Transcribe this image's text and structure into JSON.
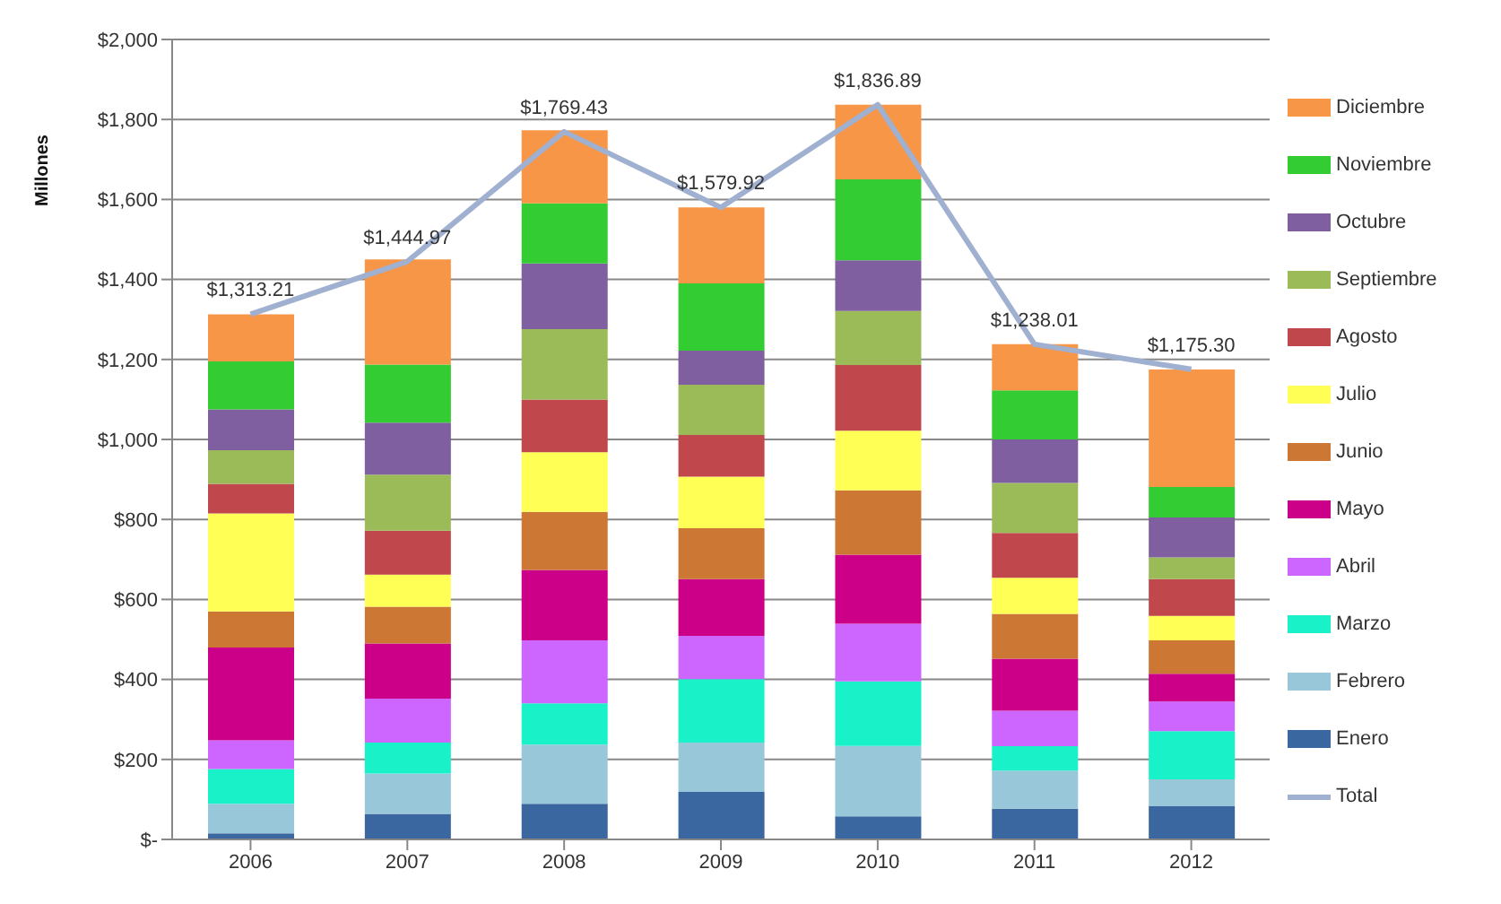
{
  "chart_data": {
    "type": "bar",
    "stacked": true,
    "ylabel": "Millones",
    "categories": [
      "2006",
      "2007",
      "2008",
      "2009",
      "2010",
      "2011",
      "2012"
    ],
    "series": [
      {
        "name": "Enero",
        "color": "#3a67a0",
        "values": [
          15,
          64,
          89,
          119,
          58,
          77,
          83
        ]
      },
      {
        "name": "Febrero",
        "color": "#99c7da",
        "values": [
          74,
          101,
          148,
          123,
          176,
          95,
          67
        ]
      },
      {
        "name": "Marzo",
        "color": "#19f2c8",
        "values": [
          87,
          77,
          103,
          159,
          161,
          61,
          121
        ]
      },
      {
        "name": "Abril",
        "color": "#cc66ff",
        "values": [
          72,
          110,
          158,
          108,
          144,
          89,
          74
        ]
      },
      {
        "name": "Mayo",
        "color": "#cc0088",
        "values": [
          232,
          138,
          176,
          142,
          173,
          130,
          69
        ]
      },
      {
        "name": "Junio",
        "color": "#cc7733",
        "values": [
          90,
          92,
          145,
          127,
          161,
          112,
          84
        ]
      },
      {
        "name": "Julio",
        "color": "#ffff55",
        "values": [
          245,
          80,
          149,
          129,
          149,
          90,
          61
        ]
      },
      {
        "name": "Agosto",
        "color": "#c0474b",
        "values": [
          74,
          110,
          132,
          104,
          164,
          112,
          92
        ]
      },
      {
        "name": "Septiembre",
        "color": "#9bbb59",
        "values": [
          84,
          140,
          176,
          126,
          135,
          125,
          54
        ]
      },
      {
        "name": "Octubre",
        "color": "#7f5fa0",
        "values": [
          102,
          130,
          164,
          85,
          127,
          109,
          100
        ]
      },
      {
        "name": "Noviembre",
        "color": "#33cc33",
        "values": [
          120,
          145,
          150,
          168,
          202,
          123,
          76
        ]
      },
      {
        "name": "Diciembre",
        "color": "#f79646",
        "values": [
          118,
          263,
          183,
          190,
          187,
          115,
          294
        ]
      },
      {
        "name": "Total",
        "type": "line",
        "color": "#a0b0d0",
        "marker": "none",
        "values": [
          1313.21,
          1444.97,
          1769.43,
          1579.92,
          1836.89,
          1238.01,
          1175.3
        ],
        "value_labels": [
          "$1,313.21",
          "$1,444.97",
          "$1,769.43",
          "$1,579.92",
          "$1,836.89",
          "$1,238.01",
          "$1,175.30"
        ]
      }
    ],
    "ylim": [
      0,
      2000
    ],
    "yticks": [
      {
        "value": 0,
        "label": "$-"
      },
      {
        "value": 200,
        "label": "$200"
      },
      {
        "value": 400,
        "label": "$400"
      },
      {
        "value": 600,
        "label": "$600"
      },
      {
        "value": 800,
        "label": "$800"
      },
      {
        "value": 1000,
        "label": "$1,000"
      },
      {
        "value": 1200,
        "label": "$1,200"
      },
      {
        "value": 1400,
        "label": "$1,400"
      },
      {
        "value": 1600,
        "label": "$1,600"
      },
      {
        "value": 1800,
        "label": "$1,800"
      },
      {
        "value": 2000,
        "label": "$2,000"
      }
    ],
    "grid": "y",
    "legend": "right"
  }
}
